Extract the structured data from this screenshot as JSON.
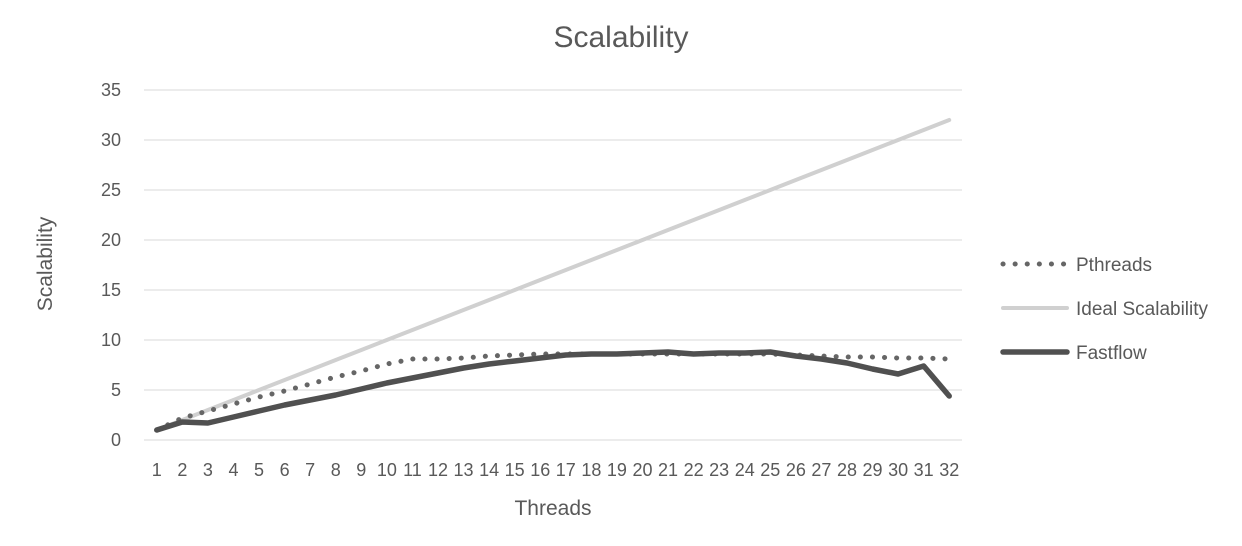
{
  "chart_data": {
    "type": "line",
    "title": "Scalability",
    "xlabel": "Threads",
    "ylabel": "Scalability",
    "ylim": [
      0,
      35
    ],
    "yticks": [
      0,
      5,
      10,
      15,
      20,
      25,
      30,
      35
    ],
    "grid": "horizontal",
    "legend_position": "right",
    "categories": [
      "1",
      "2",
      "3",
      "4",
      "5",
      "6",
      "7",
      "8",
      "9",
      "10",
      "11",
      "12",
      "13",
      "14",
      "15",
      "16",
      "17",
      "18",
      "19",
      "20",
      "21",
      "22",
      "23",
      "24",
      "25",
      "26",
      "27",
      "28",
      "29",
      "30",
      "31",
      "32"
    ],
    "series": [
      {
        "name": "Pthreads",
        "style": "dotted",
        "color": "#666666",
        "values": [
          1,
          2.2,
          2.9,
          3.6,
          4.3,
          4.9,
          5.6,
          6.3,
          6.9,
          7.6,
          8.1,
          8.1,
          8.2,
          8.4,
          8.5,
          8.6,
          8.6,
          8.6,
          8.6,
          8.6,
          8.6,
          8.6,
          8.6,
          8.6,
          8.6,
          8.5,
          8.4,
          8.3,
          8.3,
          8.2,
          8.2,
          8.1
        ]
      },
      {
        "name": "Ideal Scalability",
        "style": "solid",
        "color": "#d0d0d0",
        "values": [
          1,
          2,
          3,
          4,
          5,
          6,
          7,
          8,
          9,
          10,
          11,
          12,
          13,
          14,
          15,
          16,
          17,
          18,
          19,
          20,
          21,
          22,
          23,
          24,
          25,
          26,
          27,
          28,
          29,
          30,
          31,
          32
        ]
      },
      {
        "name": "Fastflow",
        "style": "solid-thick",
        "color": "#505050",
        "values": [
          1,
          1.8,
          1.7,
          2.3,
          2.9,
          3.5,
          4.0,
          4.5,
          5.1,
          5.7,
          6.2,
          6.7,
          7.2,
          7.6,
          7.9,
          8.2,
          8.5,
          8.6,
          8.6,
          8.7,
          8.8,
          8.6,
          8.7,
          8.7,
          8.8,
          8.4,
          8.1,
          7.7,
          7.1,
          6.6,
          7.4,
          4.4
        ]
      }
    ]
  }
}
